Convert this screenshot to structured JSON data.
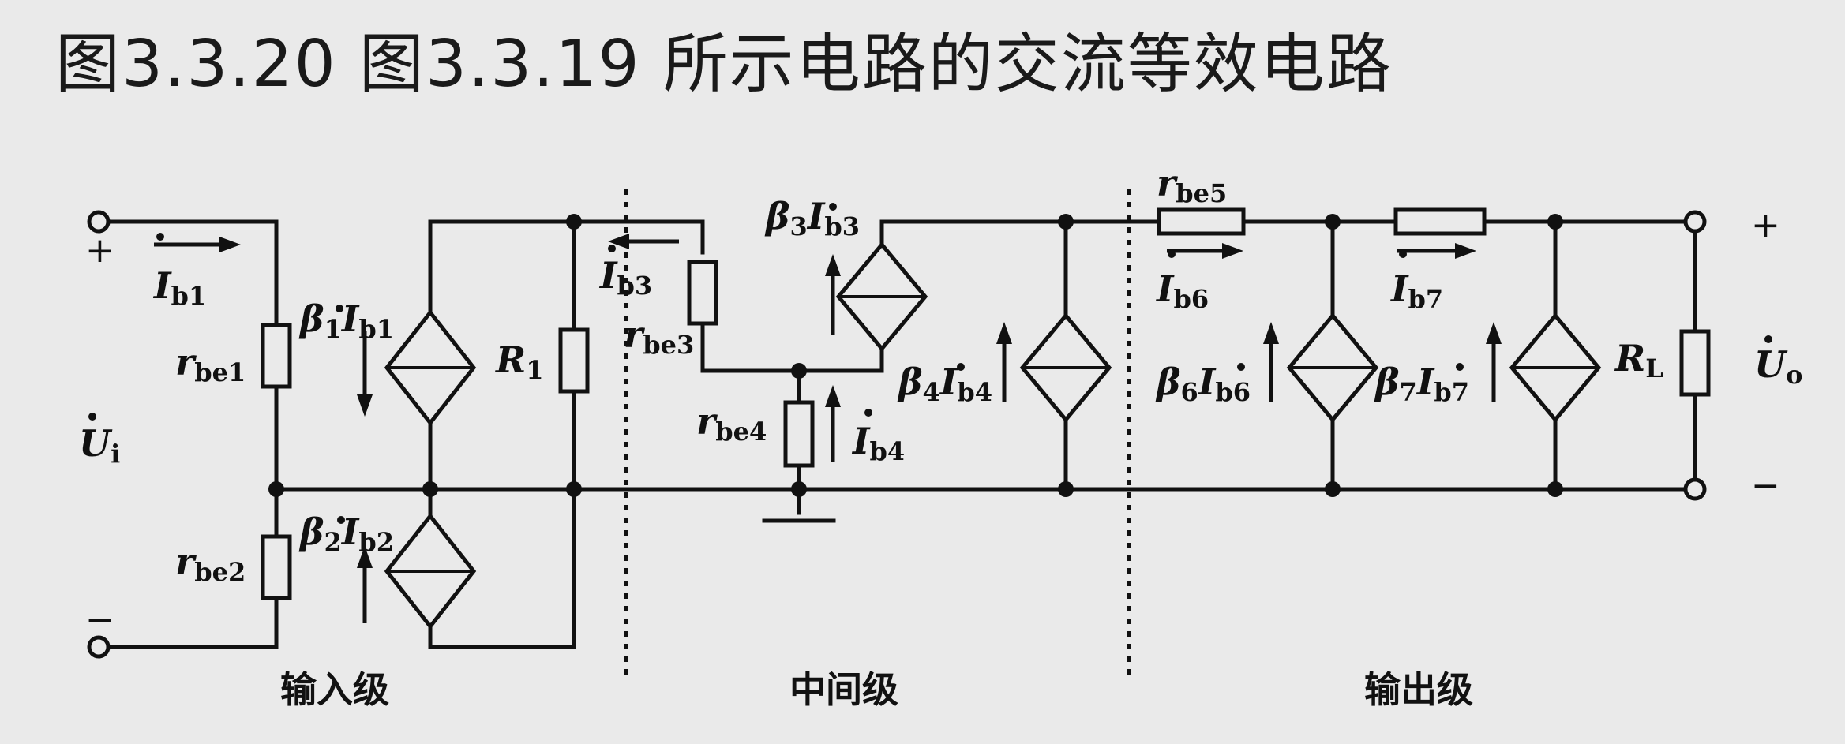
{
  "title": "图3.3.20   图3.3.19 所示电路的交流等效电路",
  "labels": {
    "plus_in": "+",
    "minus_in": "−",
    "plus_out": "+",
    "minus_out": "−",
    "ui_main": "U",
    "ui_sub": "i",
    "uo_main": "U",
    "uo_sub": "o",
    "ib1_main": "I",
    "ib1_sub": "b1",
    "rbe1_main": "r",
    "rbe1_sub": "be1",
    "rbe2_main": "r",
    "rbe2_sub": "be2",
    "beta1_main": "β",
    "beta1_num": "1",
    "beta1_i": "I",
    "beta1_sub": "b1",
    "beta2_main": "β",
    "beta2_num": "2",
    "beta2_i": "I",
    "beta2_sub": "b2",
    "r1_main": "R",
    "r1_sub": "1",
    "ib3_main": "I",
    "ib3_sub": "b3",
    "rbe3_main": "r",
    "rbe3_sub": "be3",
    "beta3_main": "β",
    "beta3_num": "3",
    "beta3_i": "I",
    "beta3_sub": "b3",
    "rbe4_main": "r",
    "rbe4_sub": "be4",
    "ib4_main": "I",
    "ib4_sub": "b4",
    "beta4_main": "β",
    "beta4_num": "4",
    "beta4_i": "I",
    "beta4_sub": "b4",
    "rbe5_main": "r",
    "rbe5_sub": "be5",
    "ib6_main": "I",
    "ib6_sub": "b6",
    "beta6_main": "β",
    "beta6_num": "6",
    "beta6_i": "I",
    "beta6_sub": "b6",
    "ib7_main": "I",
    "ib7_sub": "b7",
    "beta7_main": "β",
    "beta7_num": "7",
    "beta7_i": "I",
    "beta7_sub": "b7",
    "rl_main": "R",
    "rl_sub": "L",
    "stage_input": "输入级",
    "stage_middle": "中间级",
    "stage_output": "输出级"
  }
}
